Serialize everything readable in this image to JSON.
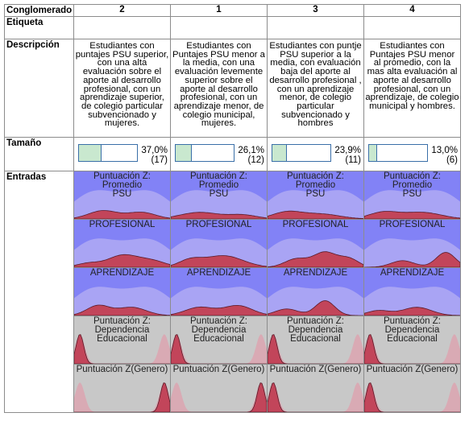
{
  "header": {
    "row_label": "Conglomerado"
  },
  "row_labels": [
    "Etiqueta",
    "Descripción",
    "Tamaño",
    "Entradas"
  ],
  "clusters": [
    {
      "name": "2",
      "description": "Estudiantes con puntajes PSU superior, con una alta evaluación sobre el aporte al desarrollo profesional, con un aprendizaje superior, de colegio particular subvencionado y mujeres.",
      "size": {
        "value": 37.0,
        "label": "37,0%"
      },
      "count": "(17)"
    },
    {
      "name": "1",
      "description": "Estudiantes con Puntajes PSU menor a la media,  con una evaluación levemente superior sobre el aporte al desarrollo profesional, con un aprendizaje menor, de colegio municipal, mujeres.",
      "size": {
        "value": 26.1,
        "label": "26,1%"
      },
      "count": "(12)"
    },
    {
      "name": "3",
      "description": "Estudiantes con puntje PSU superior a la media, con evaluación baja del aporte al desarrollo profesional , con un aprendizaje menor, de colegio particular subvencionado y hombres",
      "size": {
        "value": 23.9,
        "label": "23,9%"
      },
      "count": "(11)"
    },
    {
      "name": "4",
      "description": "Estudiantes con Puntajes PSU menor al promedio, con la mas alta evaluación al aporte al desarrollo profesional, con un aprendizaje, de colegio municipal y hombres.",
      "size": {
        "value": 13.0,
        "label": "13,0%"
      },
      "count": "(6)"
    }
  ],
  "inputs": [
    "Puntuación Z:\nPromedio\nPSU",
    "PROFESIONAL",
    "APRENDIZAJE",
    "Puntuación Z:\nDependencia\nEducacional",
    "Puntuación Z(Genero)"
  ]
}
